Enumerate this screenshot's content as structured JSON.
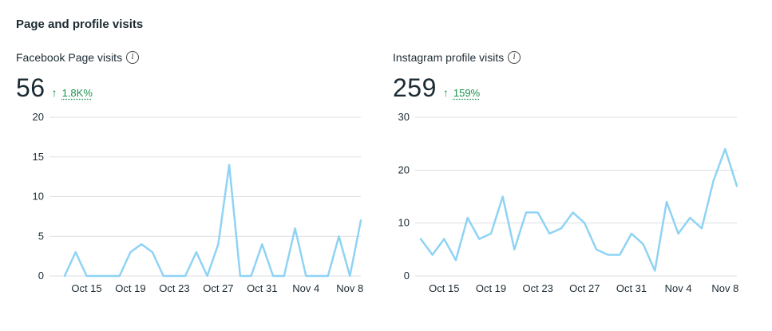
{
  "section_title": "Page and profile visits",
  "panels": [
    {
      "label": "Facebook Page visits",
      "value": "56",
      "trend_arrow": "↑",
      "trend_pct": "1.8K%"
    },
    {
      "label": "Instagram profile visits",
      "value": "259",
      "trend_arrow": "↑",
      "trend_pct": "159%"
    }
  ],
  "chart_data": [
    {
      "type": "line",
      "title": "Facebook Page visits",
      "color": "#8fd3f4",
      "x_tick_labels": [
        "Oct 15",
        "Oct 19",
        "Oct 23",
        "Oct 27",
        "Oct 31",
        "Nov 4",
        "Nov 8"
      ],
      "x_tick_indices": [
        2,
        6,
        10,
        14,
        18,
        22,
        26
      ],
      "y_ticks": [
        0,
        5,
        10,
        15,
        20
      ],
      "ylim": [
        0,
        20
      ],
      "values": [
        0,
        3,
        0,
        0,
        0,
        0,
        3,
        4,
        3,
        0,
        0,
        0,
        3,
        0,
        4,
        14,
        0,
        0,
        4,
        0,
        0,
        6,
        0,
        0,
        0,
        5,
        0,
        7
      ],
      "grid": true
    },
    {
      "type": "line",
      "title": "Instagram profile visits",
      "color": "#8fd3f4",
      "x_tick_labels": [
        "Oct 15",
        "Oct 19",
        "Oct 23",
        "Oct 27",
        "Oct 31",
        "Nov 4",
        "Nov 8"
      ],
      "x_tick_indices": [
        2,
        6,
        10,
        14,
        18,
        22,
        26
      ],
      "y_ticks": [
        0,
        10,
        20,
        30
      ],
      "ylim": [
        0,
        30
      ],
      "values": [
        7,
        4,
        7,
        3,
        11,
        7,
        8,
        15,
        5,
        12,
        12,
        8,
        9,
        12,
        10,
        5,
        4,
        4,
        8,
        6,
        1,
        14,
        8,
        11,
        9,
        18,
        24,
        17
      ],
      "grid": true
    }
  ]
}
